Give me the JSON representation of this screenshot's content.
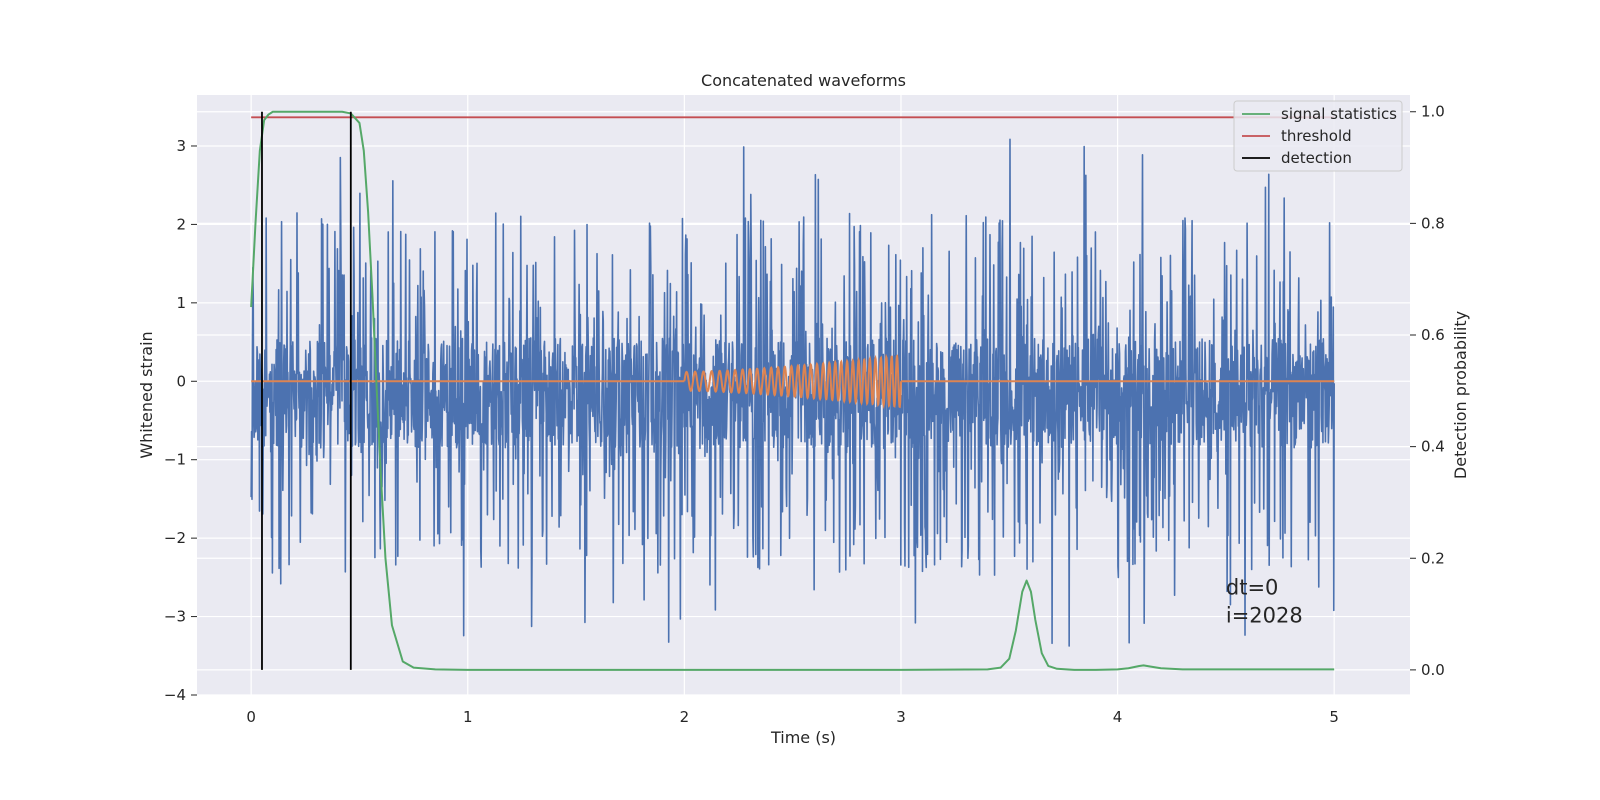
{
  "chart_data": {
    "type": "line",
    "title": "Concatenated waveforms",
    "xlabel": "Time (s)",
    "ylabel": "Whitened strain",
    "y2label": "Detection probability",
    "xlim": [
      -0.25,
      5.35
    ],
    "ylim": [
      -4.0,
      3.65
    ],
    "y2lim": [
      -0.045,
      1.03
    ],
    "xticks": [
      0,
      1,
      2,
      3,
      4,
      5
    ],
    "xtick_labels": [
      "0",
      "1",
      "2",
      "3",
      "4",
      "5"
    ],
    "yticks": [
      -4,
      -3,
      -2,
      -1,
      0,
      1,
      2,
      3
    ],
    "ytick_labels": [
      "−4",
      "−3",
      "−2",
      "−1",
      "0",
      "1",
      "2",
      "3"
    ],
    "y2ticks": [
      0.0,
      0.2,
      0.4,
      0.6,
      0.8,
      1.0
    ],
    "y2tick_labels": [
      "0.0",
      "0.2",
      "0.4",
      "0.6",
      "0.8",
      "1.0"
    ],
    "grid": true,
    "legend_position": "top-right",
    "legend": [
      {
        "label": "signal statistics",
        "color": "#55a868"
      },
      {
        "label": "threshold",
        "color": "#c44e52"
      },
      {
        "label": "detection",
        "color": "#000000"
      }
    ],
    "colors": {
      "strain": "#4c72b0",
      "template": "#dd8452",
      "signal_statistics": "#55a868",
      "threshold": "#c44e52",
      "detection": "#000000",
      "background": "#eaeaf2",
      "grid": "#ffffff"
    },
    "series": [
      {
        "axis": "left",
        "kind": "noise",
        "x_range": [
          0.0,
          5.0
        ],
        "typical_range": [
          -0.85,
          0.55
        ],
        "min": -3.4,
        "max": 3.38
      },
      {
        "axis": "left",
        "kind": "chirp",
        "x_range": [
          2.0,
          3.0
        ],
        "amplitude_start": 0.12,
        "amplitude_end": 0.33,
        "cycles": 33,
        "baseline": 0.0,
        "baseline_x_range": [
          0.0,
          5.0
        ]
      },
      {
        "name": "signal statistics",
        "axis": "right",
        "x": [
          0.0,
          0.02,
          0.04,
          0.06,
          0.08,
          0.1,
          0.15,
          0.3,
          0.42,
          0.46,
          0.5,
          0.52,
          0.54,
          0.56,
          0.58,
          0.6,
          0.62,
          0.65,
          0.7,
          0.75,
          0.85,
          1.0,
          2.0,
          3.0,
          3.4,
          3.46,
          3.5,
          3.53,
          3.56,
          3.58,
          3.6,
          3.62,
          3.65,
          3.68,
          3.72,
          3.8,
          3.9,
          4.0,
          4.05,
          4.1,
          4.12,
          4.15,
          4.2,
          4.3,
          5.0
        ],
        "y": [
          0.65,
          0.8,
          0.93,
          0.985,
          0.995,
          1.0,
          1.0,
          1.0,
          1.0,
          0.997,
          0.98,
          0.93,
          0.82,
          0.67,
          0.5,
          0.34,
          0.2,
          0.08,
          0.015,
          0.004,
          0.001,
          0.0,
          0.0,
          0.0,
          0.001,
          0.004,
          0.02,
          0.07,
          0.14,
          0.16,
          0.14,
          0.09,
          0.03,
          0.007,
          0.002,
          0.0,
          0.0,
          0.001,
          0.003,
          0.007,
          0.008,
          0.006,
          0.003,
          0.001,
          0.001
        ]
      },
      {
        "name": "threshold",
        "axis": "right",
        "x": [
          0.0,
          5.0
        ],
        "y": [
          0.99,
          0.99
        ]
      }
    ],
    "detections": [
      {
        "x": 0.05,
        "y_range": [
          0.0,
          1.0
        ]
      },
      {
        "x": 0.46,
        "y_range": [
          0.0,
          1.0
        ]
      }
    ],
    "annotation": {
      "lines": [
        "dt=0",
        "i=2028"
      ],
      "x": 4.5,
      "y": -2.9
    }
  }
}
